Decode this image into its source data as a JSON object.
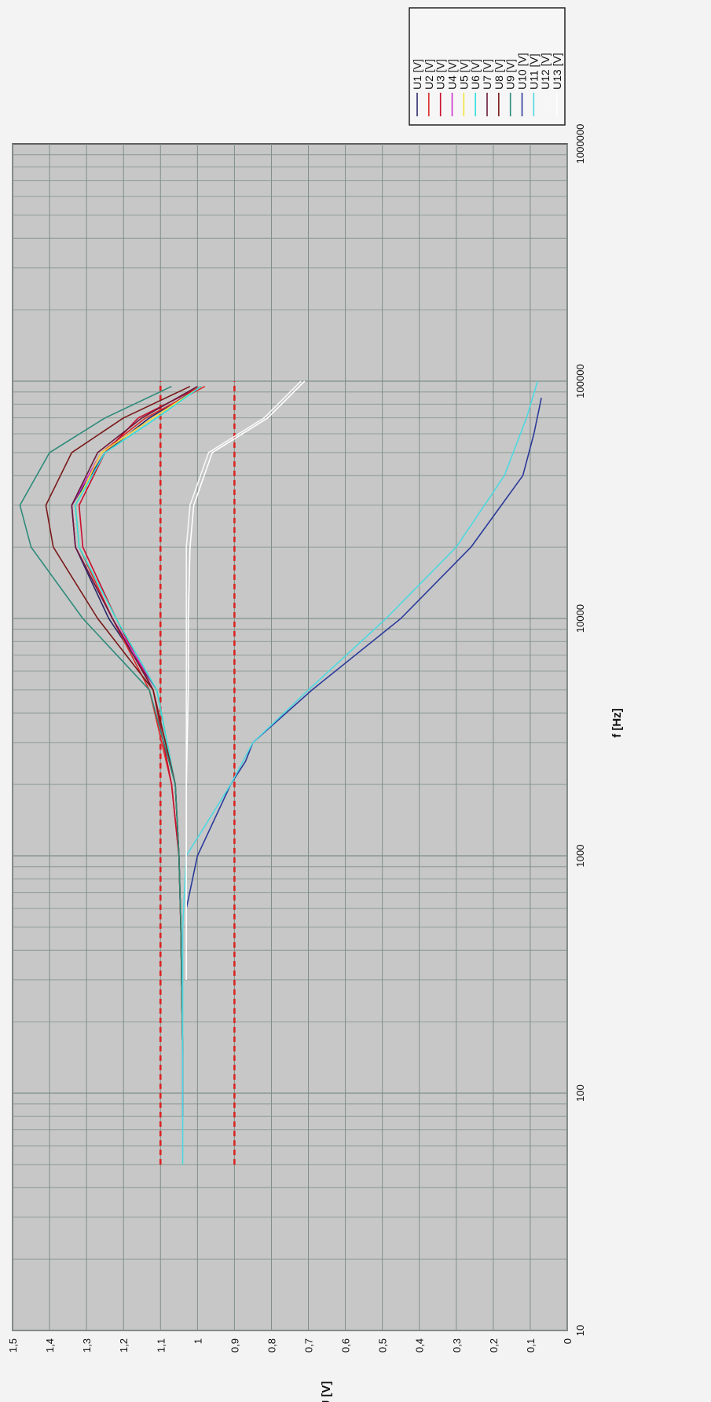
{
  "chart_data": {
    "type": "line",
    "xlabel": "f [Hz]",
    "ylabel": "U [V]",
    "x_scale": "log",
    "xlim": [
      10,
      1000000
    ],
    "ylim": [
      0,
      1.5
    ],
    "x_ticks": [
      "10",
      "100",
      "1000",
      "10000",
      "100000",
      "1000000"
    ],
    "y_ticks": [
      "0",
      "0,1",
      "0,2",
      "0,3",
      "0,4",
      "0,5",
      "0,6",
      "0,7",
      "0,8",
      "0,9",
      "1",
      "1,1",
      "1,2",
      "1,3",
      "1,4",
      "1,5"
    ],
    "grid": true,
    "legend_position": "right",
    "series": [
      {
        "name": "U1 [V]",
        "color": "#2a2a6a",
        "x": [
          80,
          150,
          500,
          1000,
          2000,
          5000,
          10000,
          20000,
          30000,
          50000,
          70000,
          95000
        ],
        "y": [
          1.04,
          1.04,
          1.045,
          1.05,
          1.06,
          1.11,
          1.24,
          1.33,
          1.34,
          1.25,
          1.13,
          0.99
        ]
      },
      {
        "name": "U2 [V]",
        "color": "#dd2a2a",
        "x": [
          150,
          500,
          1000,
          2000,
          5000,
          10000,
          20000,
          30000,
          50000,
          70000,
          95000
        ],
        "y": [
          1.04,
          1.045,
          1.05,
          1.07,
          1.13,
          1.23,
          1.32,
          1.33,
          1.26,
          1.14,
          0.98
        ]
      },
      {
        "name": "U3 [V]",
        "color": "#c8102e",
        "x": [
          150,
          500,
          1000,
          2000,
          5000,
          10000,
          20000,
          30000,
          50000,
          70000,
          95000
        ],
        "y": [
          1.04,
          1.045,
          1.05,
          1.07,
          1.12,
          1.22,
          1.31,
          1.32,
          1.25,
          1.16,
          0.99
        ]
      },
      {
        "name": "U4 [V]",
        "color": "#cc33cc",
        "x": [
          150,
          500,
          1000,
          2000,
          5000,
          10000,
          20000,
          30000,
          50000,
          70000,
          95000
        ],
        "y": [
          1.04,
          1.045,
          1.05,
          1.06,
          1.11,
          1.23,
          1.33,
          1.34,
          1.26,
          1.12,
          0.99
        ]
      },
      {
        "name": "U5 [V]",
        "color": "#f2e33a",
        "x": [
          150,
          500,
          1000,
          2000,
          5000,
          10000,
          20000,
          30000,
          50000,
          70000,
          95000
        ],
        "y": [
          1.04,
          1.045,
          1.05,
          1.06,
          1.11,
          1.22,
          1.32,
          1.33,
          1.26,
          1.12,
          0.99
        ]
      },
      {
        "name": "U6 [V]",
        "color": "#33dddd",
        "x": [
          150,
          500,
          1000,
          2000,
          5000,
          10000,
          20000,
          30000,
          50000,
          70000,
          95000
        ],
        "y": [
          1.04,
          1.045,
          1.05,
          1.06,
          1.11,
          1.22,
          1.32,
          1.33,
          1.25,
          1.11,
          0.99
        ]
      },
      {
        "name": "U7 [V]",
        "color": "#6a1a3a",
        "x": [
          150,
          500,
          1000,
          2000,
          5000,
          10000,
          20000,
          30000,
          50000,
          70000,
          95000
        ],
        "y": [
          1.04,
          1.045,
          1.05,
          1.06,
          1.12,
          1.23,
          1.33,
          1.34,
          1.27,
          1.15,
          1.0
        ]
      },
      {
        "name": "U8 [V]",
        "color": "#7a1a1a",
        "x": [
          150,
          500,
          1000,
          2000,
          5000,
          10000,
          20000,
          30000,
          50000,
          70000,
          95000
        ],
        "y": [
          1.04,
          1.045,
          1.05,
          1.06,
          1.12,
          1.27,
          1.39,
          1.41,
          1.34,
          1.2,
          1.02
        ]
      },
      {
        "name": "U9 [V]",
        "color": "#2e8b7a",
        "x": [
          150,
          500,
          1000,
          2000,
          5000,
          10000,
          20000,
          30000,
          50000,
          70000,
          95000
        ],
        "y": [
          1.04,
          1.045,
          1.05,
          1.06,
          1.13,
          1.31,
          1.45,
          1.48,
          1.4,
          1.25,
          1.07
        ]
      },
      {
        "name": "U10 [V]",
        "color": "#2a3a9a",
        "x": [
          600,
          1000,
          2000,
          2500,
          3000,
          5000,
          10000,
          20000,
          40000,
          60000,
          85000
        ],
        "y": [
          1.03,
          1.0,
          0.91,
          0.87,
          0.85,
          0.69,
          0.45,
          0.26,
          0.12,
          0.09,
          0.07
        ]
      },
      {
        "name": "U11 [V]",
        "color": "#4fd8e0",
        "x": [
          50,
          70,
          100,
          200,
          500,
          1000,
          2000,
          3000,
          5000,
          10000,
          20000,
          40000,
          70000,
          100000
        ],
        "y": [
          1.04,
          1.04,
          1.04,
          1.04,
          1.04,
          1.03,
          0.91,
          0.85,
          0.7,
          0.49,
          0.3,
          0.17,
          0.11,
          0.08
        ]
      },
      {
        "name": "U12 [V]",
        "color": "#f7f7f7",
        "x": [
          300,
          500,
          1000,
          2000,
          5000,
          10000,
          20000,
          30000,
          50000,
          70000,
          100000
        ],
        "y": [
          1.03,
          1.03,
          1.03,
          1.03,
          1.03,
          1.03,
          1.03,
          1.02,
          0.97,
          0.82,
          0.72
        ]
      },
      {
        "name": "U13 [V]",
        "color": "#ffffff",
        "x": [
          300,
          500,
          1000,
          2000,
          5000,
          10000,
          20000,
          30000,
          50000,
          70000,
          100000
        ],
        "y": [
          1.03,
          1.03,
          1.03,
          1.03,
          1.025,
          1.025,
          1.02,
          1.01,
          0.96,
          0.81,
          0.71
        ]
      }
    ],
    "reference_lines": [
      {
        "color": "#dd2222",
        "style": "dashed",
        "x": [
          50,
          100000
        ],
        "y": [
          1.1,
          1.1
        ]
      },
      {
        "color": "#dd2222",
        "style": "dashed",
        "x": [
          50,
          100000
        ],
        "y": [
          0.9,
          0.9
        ]
      }
    ]
  }
}
